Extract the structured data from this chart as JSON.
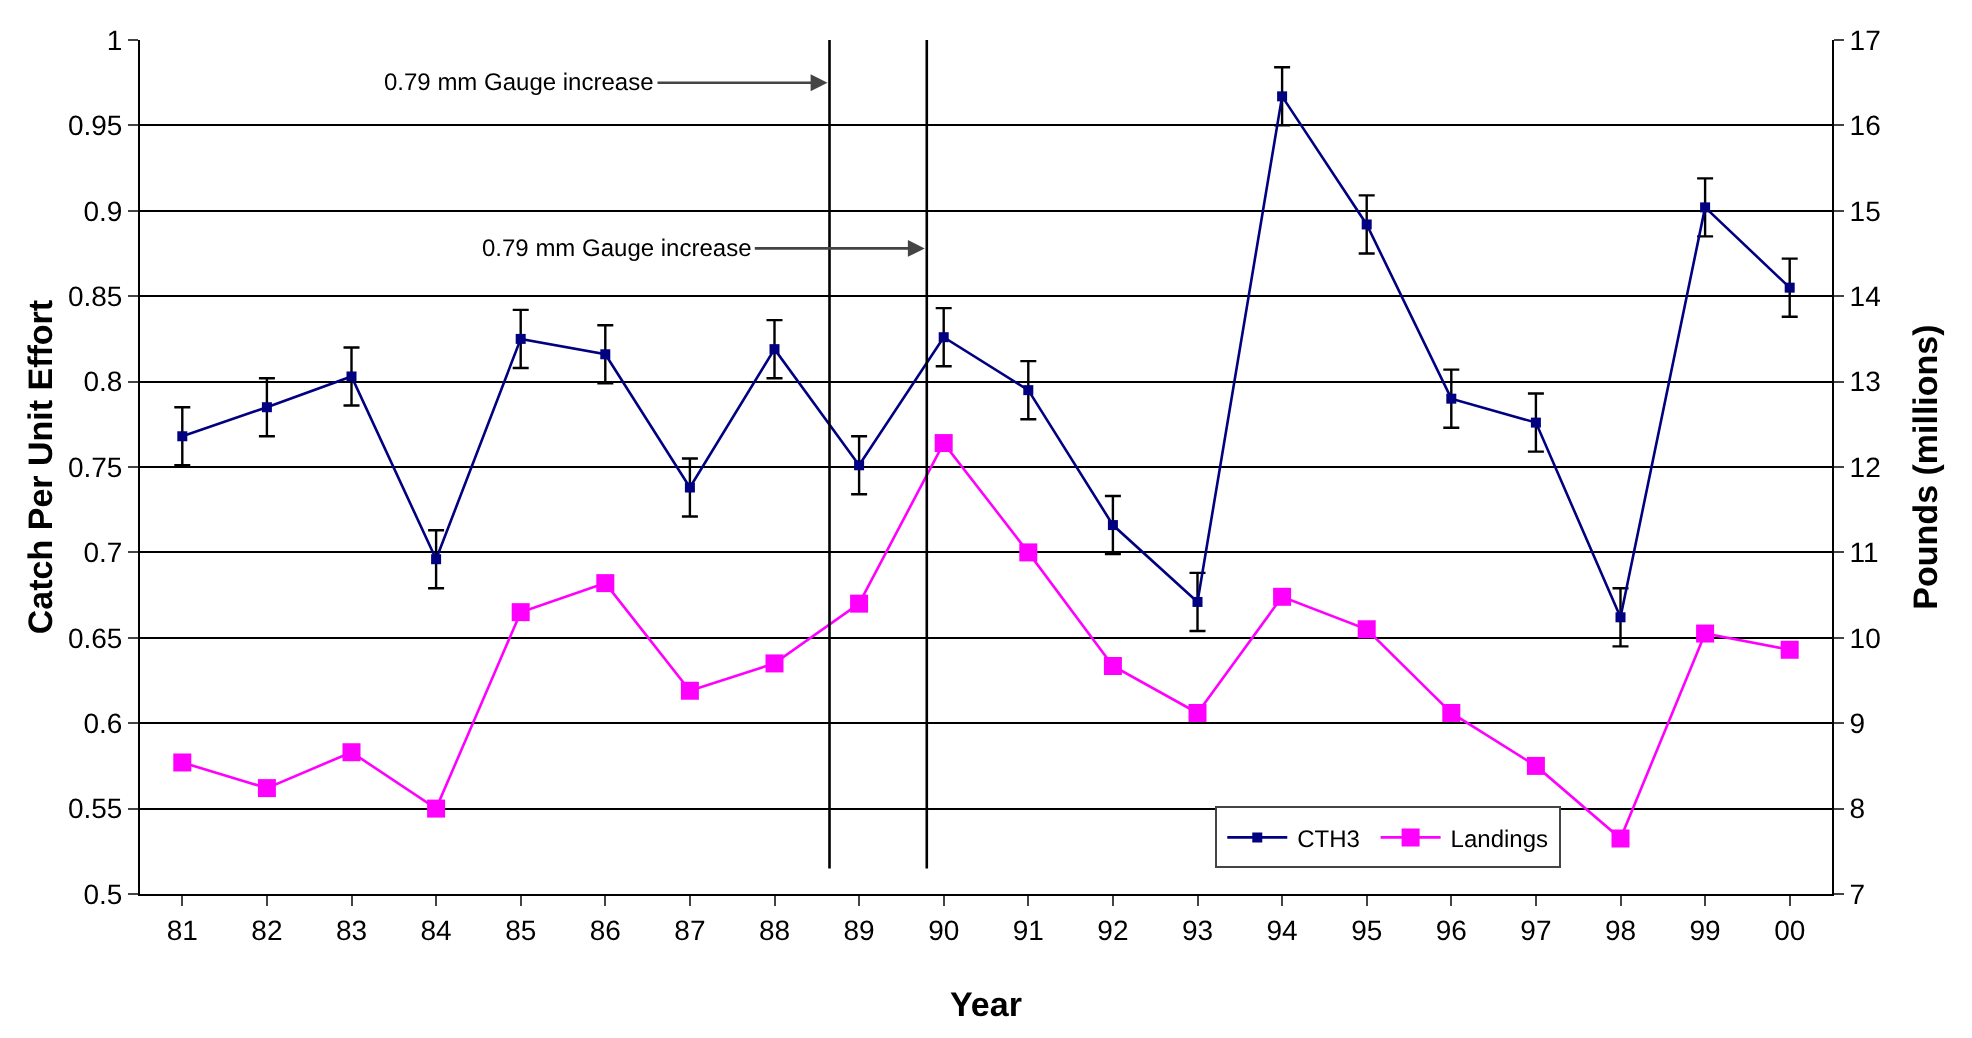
{
  "chart_data": {
    "type": "line",
    "xlabel": "Year",
    "ylabel": "Catch Per Unit Effort",
    "y2label": "Pounds (millions)",
    "x": [
      1981,
      1982,
      1983,
      1984,
      1985,
      1986,
      1987,
      1988,
      1989,
      1990,
      1991,
      1992,
      1993,
      1994,
      1995,
      1996,
      1997,
      1998,
      1999,
      2000
    ],
    "xlim": [
      1980.5,
      2000.5
    ],
    "xticks": [
      {
        "value": 1981,
        "label": "81"
      },
      {
        "value": 1982,
        "label": "82"
      },
      {
        "value": 1983,
        "label": "83"
      },
      {
        "value": 1984,
        "label": "84"
      },
      {
        "value": 1985,
        "label": "85"
      },
      {
        "value": 1986,
        "label": "86"
      },
      {
        "value": 1987,
        "label": "87"
      },
      {
        "value": 1988,
        "label": "88"
      },
      {
        "value": 1989,
        "label": "89"
      },
      {
        "value": 1990,
        "label": "90"
      },
      {
        "value": 1991,
        "label": "91"
      },
      {
        "value": 1992,
        "label": "92"
      },
      {
        "value": 1993,
        "label": "93"
      },
      {
        "value": 1994,
        "label": "94"
      },
      {
        "value": 1995,
        "label": "95"
      },
      {
        "value": 1996,
        "label": "96"
      },
      {
        "value": 1997,
        "label": "97"
      },
      {
        "value": 1998,
        "label": "98"
      },
      {
        "value": 1999,
        "label": "99"
      },
      {
        "value": 2000,
        "label": "00"
      }
    ],
    "ylim": [
      0.5,
      1
    ],
    "yticks": [
      0.5,
      0.55,
      0.6,
      0.65,
      0.7,
      0.75,
      0.8,
      0.85,
      0.9,
      0.95,
      1
    ],
    "y2lim": [
      7,
      17
    ],
    "y2ticks": [
      7,
      8,
      9,
      10,
      11,
      12,
      13,
      14,
      15,
      16,
      17
    ],
    "series": [
      {
        "name": "CTH3",
        "color": "#000080",
        "values": [
          0.768,
          0.785,
          0.803,
          0.696,
          0.825,
          0.816,
          0.738,
          0.819,
          0.751,
          0.826,
          0.795,
          0.716,
          0.671,
          0.967,
          0.892,
          0.79,
          0.776,
          0.662,
          0.902,
          0.855
        ],
        "errors": [
          0.017,
          0.017,
          0.017,
          0.017,
          0.017,
          0.017,
          0.017,
          0.017,
          0.017,
          0.017,
          0.017,
          0.017,
          0.017,
          0.017,
          0.017,
          0.017,
          0.017,
          0.017,
          0.017,
          0.017
        ]
      },
      {
        "name": "Landings",
        "color": "#ff00ff",
        "axis": "y2",
        "values": [
          8.54,
          8.24,
          8.66,
          8.0,
          10.3,
          10.64,
          9.38,
          9.7,
          10.4,
          12.28,
          11.0,
          9.67,
          9.12,
          10.48,
          10.1,
          9.12,
          8.5,
          7.65,
          10.05,
          9.86
        ]
      }
    ],
    "ref_lines": [
      {
        "axis": "x",
        "value": 1988.65,
        "color": "#000000"
      },
      {
        "axis": "x",
        "value": 1989.8,
        "color": "#000000"
      }
    ],
    "annotations": [
      {
        "text": "0.79 mm Gauge increase",
        "x": 1988.65,
        "y": 0.975
      },
      {
        "text": "0.79 mm Gauge increase",
        "x": 1989.8,
        "y": 0.878
      }
    ],
    "grid": "y",
    "legend": "bottom right",
    "marker": "square",
    "line_style": "solid"
  }
}
